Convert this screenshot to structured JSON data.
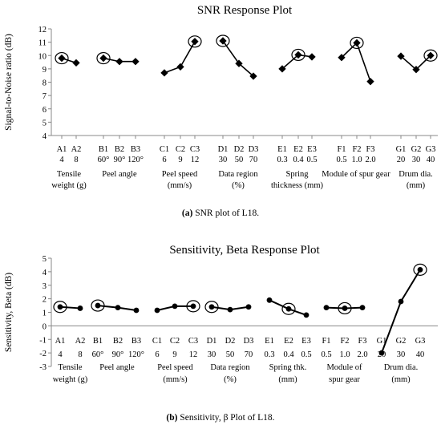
{
  "chart_data": [
    {
      "type": "line",
      "title": "SNR Response Plot",
      "ylabel": "Signal-to-Noise ratio  (dB)",
      "ylim": [
        4,
        12
      ],
      "yticks": [
        "4",
        "5",
        "6",
        "7",
        "8",
        "9",
        "10",
        "11",
        "12"
      ],
      "caption_prefix": "(a)",
      "caption_text": " SNR plot of L18.",
      "groups": [
        {
          "levels": [
            "A1",
            "A2"
          ],
          "values_text": [
            "4",
            "8"
          ],
          "factor": [
            "Tensile",
            "weight (g)"
          ],
          "y": [
            9.8,
            9.45
          ],
          "circled": [
            0
          ]
        },
        {
          "levels": [
            "B1",
            "B2",
            "B3"
          ],
          "values_text": [
            "60°",
            "90°",
            "120°"
          ],
          "factor": [
            "Peel angle"
          ],
          "y": [
            9.8,
            9.55,
            9.55
          ],
          "circled": [
            0
          ]
        },
        {
          "levels": [
            "C1",
            "C2",
            "C3"
          ],
          "values_text": [
            "6",
            "9",
            "12"
          ],
          "factor": [
            "Peel speed",
            "(mm/s)"
          ],
          "y": [
            8.7,
            9.15,
            11.05
          ],
          "circled": [
            2
          ]
        },
        {
          "levels": [
            "D1",
            "D2",
            "D3"
          ],
          "values_text": [
            "30",
            "50",
            "70"
          ],
          "factor": [
            "Data region",
            "(%)"
          ],
          "y": [
            11.1,
            9.4,
            8.45
          ],
          "circled": [
            0
          ]
        },
        {
          "levels": [
            "E1",
            "E2",
            "E3"
          ],
          "values_text": [
            "0.3",
            "0.4",
            "0.5"
          ],
          "factor": [
            "Spring",
            "thickness (mm)"
          ],
          "y": [
            9.0,
            10.05,
            9.9
          ],
          "circled": [
            1
          ]
        },
        {
          "levels": [
            "F1",
            "F2",
            "F3"
          ],
          "values_text": [
            "0.5",
            "1.0",
            "2.0"
          ],
          "factor": [
            "Module of  spur  gear"
          ],
          "y": [
            9.85,
            10.95,
            8.05
          ],
          "circled": [
            1
          ]
        },
        {
          "levels": [
            "G1",
            "G2",
            "G3"
          ],
          "values_text": [
            "20",
            "30",
            "40"
          ],
          "factor": [
            "Drum dia.",
            "(mm)"
          ],
          "y": [
            9.95,
            8.95,
            10.0
          ],
          "circled": [
            2
          ]
        }
      ]
    },
    {
      "type": "line",
      "title": "Sensitivity, Beta Response Plot",
      "ylabel": "Sensitivity, Beta (dB)",
      "ylim": [
        -3,
        5
      ],
      "yticks": [
        "-3",
        "-2",
        "-1",
        "0",
        "1",
        "2",
        "3",
        "4",
        "5"
      ],
      "caption_prefix": "(b)",
      "caption_text": " Sensitivity, β Plot of L18.",
      "groups": [
        {
          "levels": [
            "A1",
            "A2"
          ],
          "values_text": [
            "4",
            "8"
          ],
          "factor": [
            "Tensile",
            "weight (g)"
          ],
          "y": [
            1.4,
            1.3
          ],
          "circled": [
            0
          ]
        },
        {
          "levels": [
            "B1",
            "B2",
            "B3"
          ],
          "values_text": [
            "60°",
            "90°",
            "120°"
          ],
          "factor": [
            "Peel angle"
          ],
          "y": [
            1.5,
            1.35,
            1.15
          ],
          "circled": [
            0
          ]
        },
        {
          "levels": [
            "C1",
            "C2",
            "C3"
          ],
          "values_text": [
            "6",
            "9",
            "12"
          ],
          "factor": [
            "Peel speed",
            "(mm/s)"
          ],
          "y": [
            1.15,
            1.45,
            1.45
          ],
          "circled": [
            2
          ]
        },
        {
          "levels": [
            "D1",
            "D2",
            "D3"
          ],
          "values_text": [
            "30",
            "50",
            "70"
          ],
          "factor": [
            "Data region",
            "(%)"
          ],
          "y": [
            1.4,
            1.2,
            1.4
          ],
          "circled": [
            0
          ]
        },
        {
          "levels": [
            "E1",
            "E2",
            "E3"
          ],
          "values_text": [
            "0.3",
            "0.4",
            "0.5"
          ],
          "factor": [
            "Spring  thk.",
            "(mm)"
          ],
          "y": [
            1.9,
            1.25,
            0.8
          ],
          "circled": [
            1
          ]
        },
        {
          "levels": [
            "F1",
            "F2",
            "F3"
          ],
          "values_text": [
            "0.5",
            "1.0",
            "2.0"
          ],
          "factor": [
            "Module of",
            "spur  gear"
          ],
          "y": [
            1.35,
            1.3,
            1.35
          ],
          "circled": [
            1
          ]
        },
        {
          "levels": [
            "G1",
            "G2",
            "G3"
          ],
          "values_text": [
            "20",
            "30",
            "40"
          ],
          "factor": [
            "Drum dia.",
            "(mm)"
          ],
          "y": [
            -2.0,
            1.8,
            4.15
          ],
          "circled": [
            2
          ]
        }
      ]
    }
  ]
}
